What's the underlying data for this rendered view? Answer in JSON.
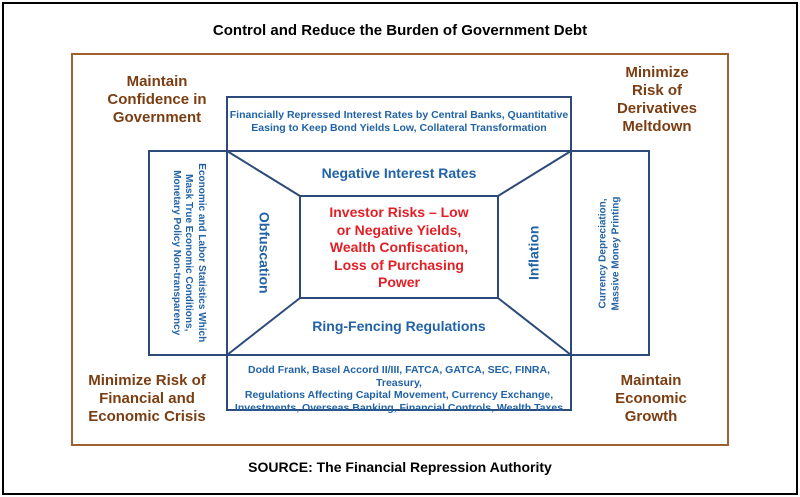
{
  "title": "Control and Reduce the Burden of Government Debt",
  "source": "SOURCE: The Financial Repression Authority",
  "corners": {
    "top_left": [
      "Maintain",
      "Confidence in",
      "Government"
    ],
    "top_right": [
      "Minimize",
      "Risk of",
      "Derivatives",
      "Meltdown"
    ],
    "bottom_left": [
      "Minimize Risk of",
      "Financial and",
      "Economic Crisis"
    ],
    "bottom_right": [
      "Maintain",
      "Economic",
      "Growth"
    ]
  },
  "top_box": [
    "Financially Repressed Interest Rates by Central Banks, Quantitative",
    "Easing to Keep Bond Yields Low, Collateral Transformation"
  ],
  "bottom_box": [
    "Dodd Frank, Basel Accord II/III, FATCA, GATCA, SEC, FINRA, Treasury,",
    "Regulations Affecting Capital Movement, Currency Exchange,",
    "Investments, Overseas Banking, Financial Controls, Wealth Taxes"
  ],
  "left_box": [
    "Economic and Labor Statistics Which",
    "Mask True Economic Conditions,",
    "Monetary Policy Non-transparency"
  ],
  "right_box": [
    "Currency Depreciation,",
    "Massive Money Printing"
  ],
  "trapezoids": {
    "top": "Negative Interest Rates",
    "bottom": "Ring-Fencing Regulations",
    "left": "Obfuscation",
    "right": "Inflation"
  },
  "center": [
    "Investor Risks – Low",
    "or Negative  Yields,",
    "Wealth Confiscation,",
    "Loss of Purchasing",
    "Power"
  ],
  "colors": {
    "frame": "#a0622d",
    "box_stroke": "#2e4a7a",
    "blue_text": "#2163a6",
    "red_text": "#e31f26",
    "corner_text": "#7a3e12"
  }
}
